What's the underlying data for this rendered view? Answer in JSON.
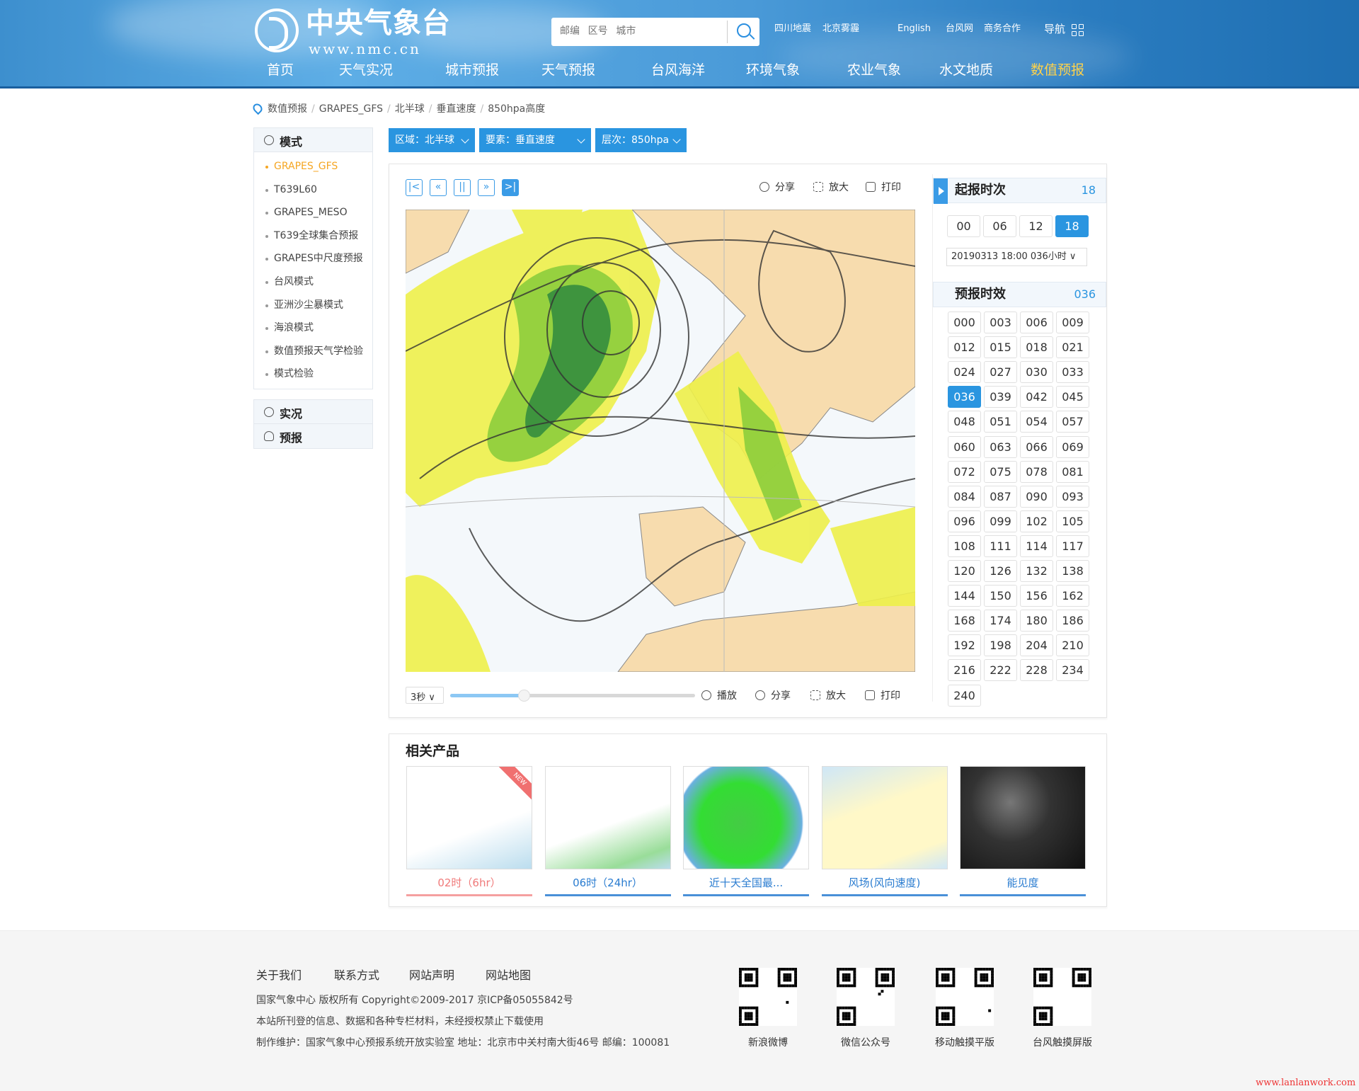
{
  "header": {
    "logo_cn": "中央气象台",
    "logo_en": "www.nmc.cn",
    "search_placeholder": "邮编   区号   城市",
    "hot_links": [
      "四川地震",
      "北京雾霾"
    ],
    "top_links": [
      "English",
      "台风网",
      "商务合作"
    ],
    "nav_label": "导航"
  },
  "nav": [
    {
      "label": "首页"
    },
    {
      "label": "天气实况"
    },
    {
      "label": "城市预报"
    },
    {
      "label": "天气预报"
    },
    {
      "label": "台风海洋"
    },
    {
      "label": "环境气象"
    },
    {
      "label": "农业气象"
    },
    {
      "label": "水文地质"
    },
    {
      "label": "数值预报",
      "active": true
    }
  ],
  "breadcrumb": [
    "数值预报",
    "GRAPES_GFS",
    "北半球",
    "垂直速度",
    "850hpa高度"
  ],
  "sidebar": {
    "mode_title": "模式",
    "items": [
      "GRAPES_GFS",
      "T639L60",
      "GRAPES_MESO",
      "T639全球集合预报",
      "GRAPES中尺度预报",
      "台风模式",
      "亚洲沙尘暴模式",
      "海浪模式",
      "数值预报天气学检验",
      "模式检验"
    ],
    "active_index": 0,
    "obs_title": "实况",
    "fcst_title": "预报"
  },
  "filters": {
    "region": "区域：北半球",
    "element": "要素：垂直速度",
    "level": "层次：850hpa"
  },
  "player": {
    "tools": [
      "分享",
      "放大",
      "打印"
    ],
    "speed": "3秒",
    "play": "播放",
    "progress": 0.3
  },
  "colors": {
    "accent": "#2a95e0",
    "active_nav": "#ffd24a",
    "active_model": "#f5a623"
  },
  "init_time": {
    "title": "起报时次",
    "value": "18",
    "hours": [
      "00",
      "06",
      "12",
      "18"
    ],
    "active": "18",
    "select": "20190313 18:00  036小时"
  },
  "forecast": {
    "title": "预报时效",
    "value": "036",
    "active": "036",
    "hours": [
      "000",
      "003",
      "006",
      "009",
      "012",
      "015",
      "018",
      "021",
      "024",
      "027",
      "030",
      "033",
      "036",
      "039",
      "042",
      "045",
      "048",
      "051",
      "054",
      "057",
      "060",
      "063",
      "066",
      "069",
      "072",
      "075",
      "078",
      "081",
      "084",
      "087",
      "090",
      "093",
      "096",
      "099",
      "102",
      "105",
      "108",
      "111",
      "114",
      "117",
      "120",
      "126",
      "132",
      "138",
      "144",
      "150",
      "156",
      "162",
      "168",
      "174",
      "180",
      "186",
      "192",
      "198",
      "204",
      "210",
      "216",
      "222",
      "228",
      "234",
      "240"
    ]
  },
  "related": {
    "title": "相关产品",
    "items": [
      {
        "label": "02时（6hr）",
        "badge": "NEW"
      },
      {
        "label": "06时（24hr）"
      },
      {
        "label": "近十天全国最..."
      },
      {
        "label": "风场(风向速度)"
      },
      {
        "label": "能见度"
      }
    ]
  },
  "footer": {
    "links": [
      "关于我们",
      "联系方式",
      "网站声明",
      "网站地图"
    ],
    "lines": [
      "国家气象中心 版权所有 Copyright©2009-2017 京ICP备05055842号",
      "本站所刊登的信息、数据和各种专栏材料，未经授权禁止下载使用",
      "制作维护：国家气象中心预报系统开放实验室 地址：北京市中关村南大街46号 邮编：100081"
    ],
    "qr": [
      "新浪微博",
      "微信公众号",
      "移动触摸平版",
      "台风触摸屏版"
    ],
    "watermark": "www.lanlanwork.com"
  }
}
